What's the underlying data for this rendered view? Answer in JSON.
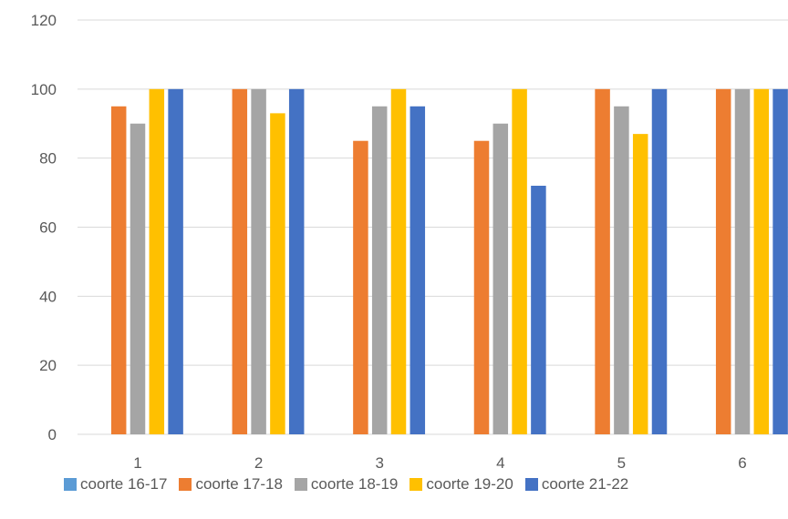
{
  "chart_data": {
    "type": "bar",
    "categories": [
      "1",
      "2",
      "3",
      "4",
      "5",
      "6"
    ],
    "series": [
      {
        "name": "coorte 16-17",
        "color": "#5B9BD5",
        "values": [
          0,
          0,
          0,
          0,
          0,
          0
        ]
      },
      {
        "name": "coorte 17-18",
        "color": "#ED7D31",
        "values": [
          95,
          100,
          85,
          85,
          100,
          100
        ]
      },
      {
        "name": "coorte 18-19",
        "color": "#A5A5A5",
        "values": [
          90,
          100,
          95,
          90,
          95,
          100
        ]
      },
      {
        "name": "coorte 19-20",
        "color": "#FFC000",
        "values": [
          100,
          93,
          100,
          100,
          87,
          100
        ]
      },
      {
        "name": "coorte 21-22",
        "color": "#4472C4",
        "values": [
          100,
          100,
          95,
          72,
          100,
          100
        ]
      }
    ],
    "y_ticks": [
      "0",
      "20",
      "40",
      "60",
      "80",
      "100",
      "120"
    ],
    "ylim": [
      0,
      120
    ],
    "grid": true,
    "legend_position": "bottom",
    "title": "",
    "xlabel": "",
    "ylabel": ""
  }
}
